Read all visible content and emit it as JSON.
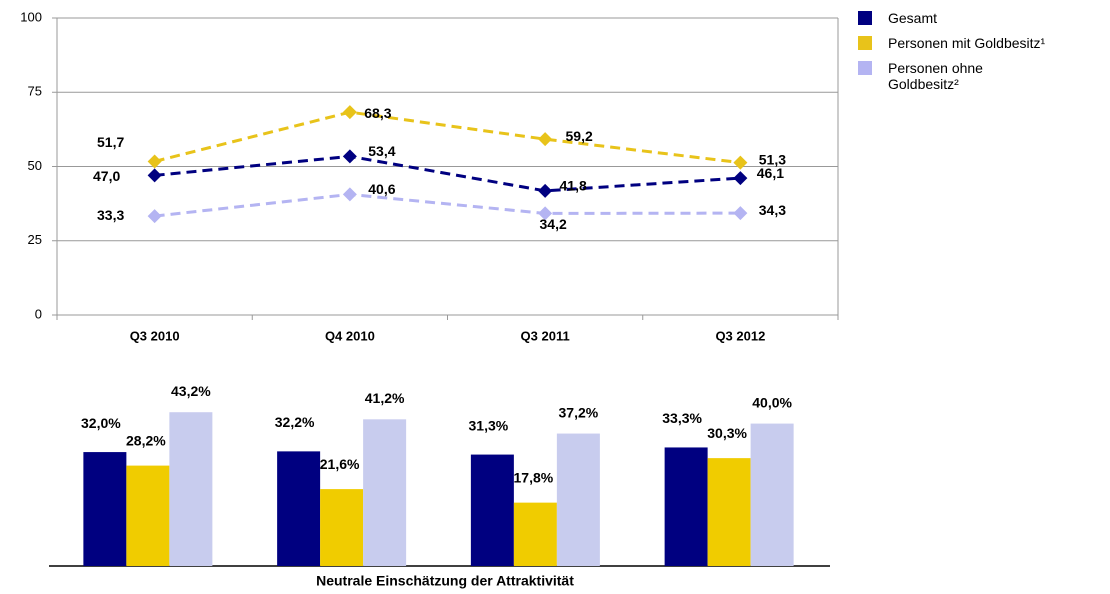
{
  "chart_data": [
    {
      "type": "line",
      "categories": [
        "Q3 2010",
        "Q4 2010",
        "Q3 2011",
        "Q3 2012"
      ],
      "series": [
        {
          "name": "Gesamt",
          "color": "#000080",
          "values": [
            47.0,
            53.4,
            41.8,
            46.1
          ],
          "value_labels": [
            "47,0",
            "53,4",
            "41,8",
            "46,1"
          ]
        },
        {
          "name": "Personen mit Goldbesitz¹",
          "color": "#e8c31a",
          "values": [
            51.7,
            68.3,
            59.2,
            51.3
          ],
          "value_labels": [
            "51,7",
            "68,3",
            "59,2",
            "51,3"
          ]
        },
        {
          "name": "Personen ohne Goldbesitz²",
          "color": "#b4b4f2",
          "values": [
            33.3,
            40.6,
            34.2,
            34.3
          ],
          "value_labels": [
            "33,3",
            "40,6",
            "34,2",
            "34,3"
          ]
        }
      ],
      "ylim": [
        0,
        100
      ],
      "yticks": [
        0,
        25,
        50,
        75,
        100
      ],
      "grid": true,
      "legend": "right"
    },
    {
      "type": "bar",
      "xlabel": "Neutrale Einschätzung der Attraktivität",
      "categories": [
        null,
        null,
        null,
        null
      ],
      "series": [
        {
          "color": "#000080",
          "values": [
            32.0,
            32.2,
            31.3,
            33.3
          ],
          "value_labels": [
            "32,0%",
            "32,2%",
            "31,3%",
            "33,3%"
          ]
        },
        {
          "color": "#f0cc00",
          "values": [
            28.2,
            21.6,
            17.8,
            30.3
          ],
          "value_labels": [
            "28,2%",
            "21,6%",
            "17,8%",
            "30,3%"
          ]
        },
        {
          "color": "#c8ccee",
          "values": [
            43.2,
            41.2,
            37.2,
            40.0
          ],
          "value_labels": [
            "43,2%",
            "41,2%",
            "37,2%",
            "40,0%"
          ]
        }
      ]
    }
  ]
}
